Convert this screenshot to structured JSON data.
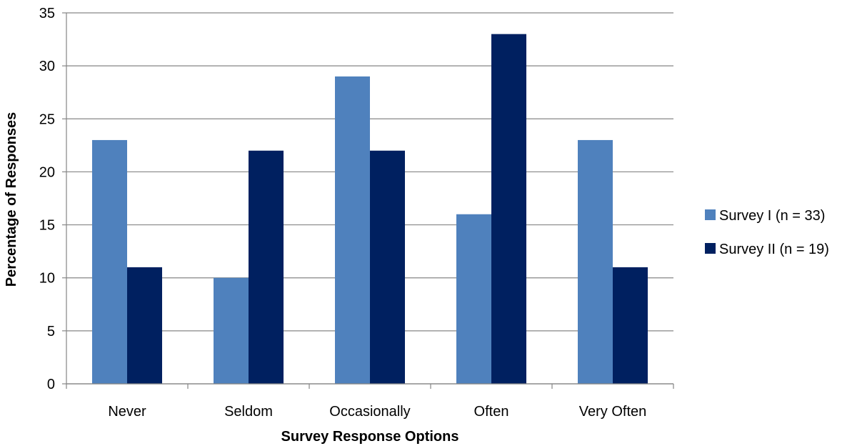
{
  "chart_data": {
    "type": "bar",
    "title": "",
    "xlabel": "Survey Response Options",
    "ylabel": "Percentage of Responses",
    "categories": [
      "Never",
      "Seldom",
      "Occasionally",
      "Often",
      "Very Often"
    ],
    "series": [
      {
        "name": "Survey I (n = 33)",
        "values": [
          23,
          10,
          29,
          16,
          23
        ],
        "color": "#4F81BD"
      },
      {
        "name": "Survey II (n = 19)",
        "values": [
          11,
          22,
          22,
          33,
          11
        ],
        "color": "#002060"
      }
    ],
    "ylim": [
      0,
      35
    ],
    "yticks": [
      "0",
      "5",
      "10",
      "15",
      "20",
      "25",
      "30",
      "35"
    ],
    "grid": true,
    "legend_position": "right",
    "gridline_color": "#868686"
  }
}
